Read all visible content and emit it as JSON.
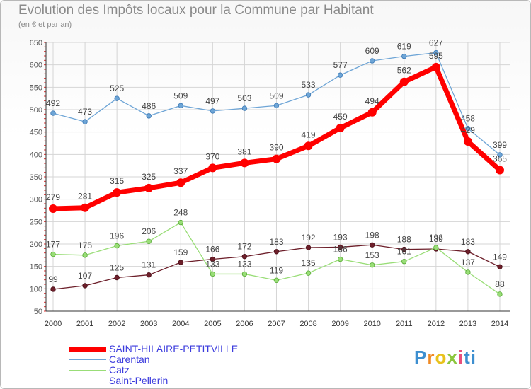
{
  "header": {
    "title": "Evolution des Impôts locaux pour la Commune par Habitant",
    "subtitle": "(en € et par an)"
  },
  "logo": {
    "letters": [
      "P",
      "r",
      "o",
      "x",
      "i",
      "ti"
    ],
    "text": "Proxiti"
  },
  "chart_data": {
    "type": "line",
    "x": [
      "2000",
      "2001",
      "2002",
      "2003",
      "2004",
      "2005",
      "2006",
      "2007",
      "2008",
      "2009",
      "2010",
      "2011",
      "2012",
      "2013",
      "2014"
    ],
    "ylim": [
      50,
      650
    ],
    "yticks": [
      50,
      100,
      150,
      200,
      250,
      300,
      350,
      400,
      450,
      500,
      550,
      600,
      650
    ],
    "grid": true,
    "legend_position": "bottom-left",
    "series": [
      {
        "name": "SAINT-HILAIRE-PETITVILLE",
        "color": "#ff0000",
        "values": [
          279,
          281,
          315,
          325,
          337,
          370,
          381,
          390,
          419,
          459,
          494,
          562,
          595,
          429,
          365
        ]
      },
      {
        "name": "Carentan",
        "color": "#6ea5d6",
        "values": [
          492,
          473,
          525,
          486,
          509,
          497,
          503,
          509,
          533,
          577,
          609,
          619,
          627,
          458,
          399
        ]
      },
      {
        "name": "Catz",
        "color": "#99dd77",
        "values": [
          177,
          175,
          196,
          206,
          248,
          133,
          133,
          119,
          135,
          166,
          153,
          161,
          192,
          137,
          88
        ]
      },
      {
        "name": "Saint-Pellerin",
        "color": "#6d1f2a",
        "values": [
          99,
          107,
          125,
          131,
          159,
          166,
          172,
          183,
          192,
          193,
          198,
          188,
          189,
          183,
          149
        ]
      }
    ]
  }
}
